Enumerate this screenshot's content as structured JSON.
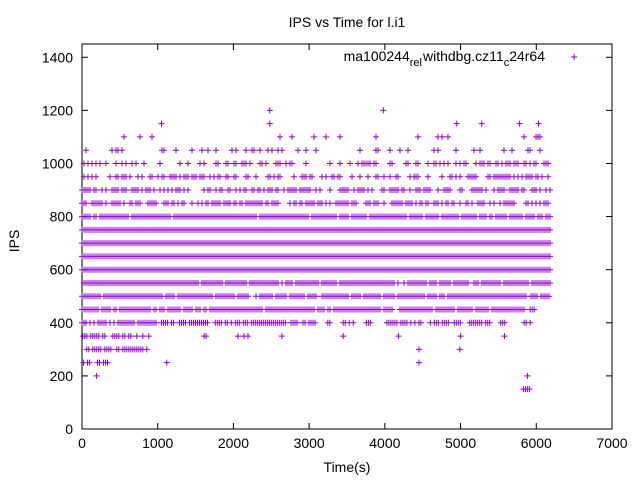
{
  "chart_data": {
    "type": "scatter",
    "title": "IPS vs Time for l.i1",
    "xlabel": "Time(s)",
    "ylabel": "IPS",
    "xlim": [
      0,
      7000
    ],
    "ylim": [
      0,
      1450
    ],
    "x_ticks": [
      0,
      1000,
      2000,
      3000,
      4000,
      5000,
      6000,
      7000
    ],
    "y_ticks": [
      0,
      200,
      400,
      600,
      800,
      1000,
      1200,
      1400
    ],
    "grid": false,
    "legend_position": "top-right",
    "marker": "plus",
    "ips_levels": [
      150,
      200,
      250,
      300,
      350,
      400,
      450,
      500,
      550,
      600,
      650,
      700,
      750,
      800,
      850,
      900,
      950,
      1000,
      1050,
      1100,
      1150,
      1200
    ],
    "series": [
      {
        "legend_parts": {
          "a": "ma100244",
          "b": "rel",
          "c": "withdbg.cz11",
          "d": "c",
          "e": "24r64"
        },
        "color": "#9400d3",
        "bands": [
          {
            "y": 150,
            "segments": [
              [
                5830,
                5930
              ]
            ]
          },
          {
            "y": 200,
            "segments": [
              [
                140,
                260
              ],
              [
                5830,
                5930
              ]
            ]
          },
          {
            "y": 250,
            "segments": [
              [
                20,
                340
              ],
              [
                1120,
                1120
              ],
              [
                4450,
                4450
              ]
            ]
          },
          {
            "y": 300,
            "segments": [
              [
                10,
                880
              ],
              [
                4450,
                4450
              ],
              [
                4990,
                4990
              ]
            ]
          },
          {
            "y": 350,
            "segments": [
              [
                10,
                900
              ],
              [
                1560,
                1660
              ],
              [
                2060,
                2220
              ],
              [
                2640,
                2640
              ],
              [
                3450,
                3450
              ],
              [
                4180,
                4180
              ],
              [
                5000,
                5000
              ],
              [
                5580,
                5580
              ]
            ]
          },
          {
            "y": 400,
            "segments": [
              [
                0,
                1000
              ],
              [
                1050,
                1680
              ],
              [
                1760,
                2700
              ],
              [
                2760,
                3120
              ],
              [
                3220,
                3280
              ],
              [
                3450,
                3600
              ],
              [
                3730,
                3820
              ],
              [
                4000,
                4480
              ],
              [
                4600,
                5000
              ],
              [
                5120,
                5400
              ],
              [
                5530,
                5600
              ],
              [
                5840,
                5920
              ]
            ]
          },
          {
            "y": 450,
            "segments": [
              [
                0,
                5850
              ],
              [
                5920,
                6000
              ]
            ]
          },
          {
            "y": 500,
            "segments": [
              [
                0,
                5870
              ],
              [
                5930,
                6180
              ]
            ]
          },
          {
            "y": 550,
            "segments": [
              [
                0,
                6190
              ]
            ]
          },
          {
            "y": 600,
            "segments": [
              [
                0,
                6190
              ]
            ]
          },
          {
            "y": 650,
            "segments": [
              [
                0,
                6190
              ]
            ]
          },
          {
            "y": 700,
            "segments": [
              [
                0,
                6190
              ]
            ]
          },
          {
            "y": 750,
            "segments": [
              [
                0,
                6190
              ]
            ]
          },
          {
            "y": 800,
            "segments": [
              [
                0,
                6190
              ]
            ]
          },
          {
            "y": 850,
            "segments": [
              [
                0,
                6190
              ]
            ]
          },
          {
            "y": 900,
            "segments": [
              [
                0,
                6190
              ]
            ]
          },
          {
            "y": 950,
            "segments": [
              [
                0,
                6170
              ]
            ]
          },
          {
            "y": 1000,
            "segments": [
              [
                0,
                6170
              ]
            ]
          },
          {
            "y": 1050,
            "segments": [
              [
                0,
                6100
              ]
            ]
          },
          {
            "y": 1100,
            "segments": [
              [
                0,
                6100
              ]
            ]
          },
          {
            "y": 1150,
            "segments": [
              [
                1050,
                1050
              ],
              [
                2480,
                2480
              ],
              [
                4950,
                4950
              ],
              [
                5280,
                5280
              ],
              [
                5780,
                5780
              ],
              [
                6030,
                6030
              ]
            ]
          },
          {
            "y": 1200,
            "segments": [
              [
                2480,
                2480
              ],
              [
                3980,
                3980
              ]
            ]
          }
        ],
        "densities": {
          "150": 1,
          "200": 0.6,
          "250": 0.5,
          "300": 0.8,
          "350": 0.6,
          "400": 0.8,
          "450": 0.9,
          "500": 0.9,
          "550": 0.9,
          "600": 1,
          "650": 1,
          "700": 1,
          "750": 1,
          "800": 0.9,
          "850": 0.7,
          "900": 0.6,
          "950": 0.5,
          "1000": 0.35,
          "1050": 0.18,
          "1100": 0.08,
          "1150": 1,
          "1200": 1
        }
      }
    ]
  }
}
